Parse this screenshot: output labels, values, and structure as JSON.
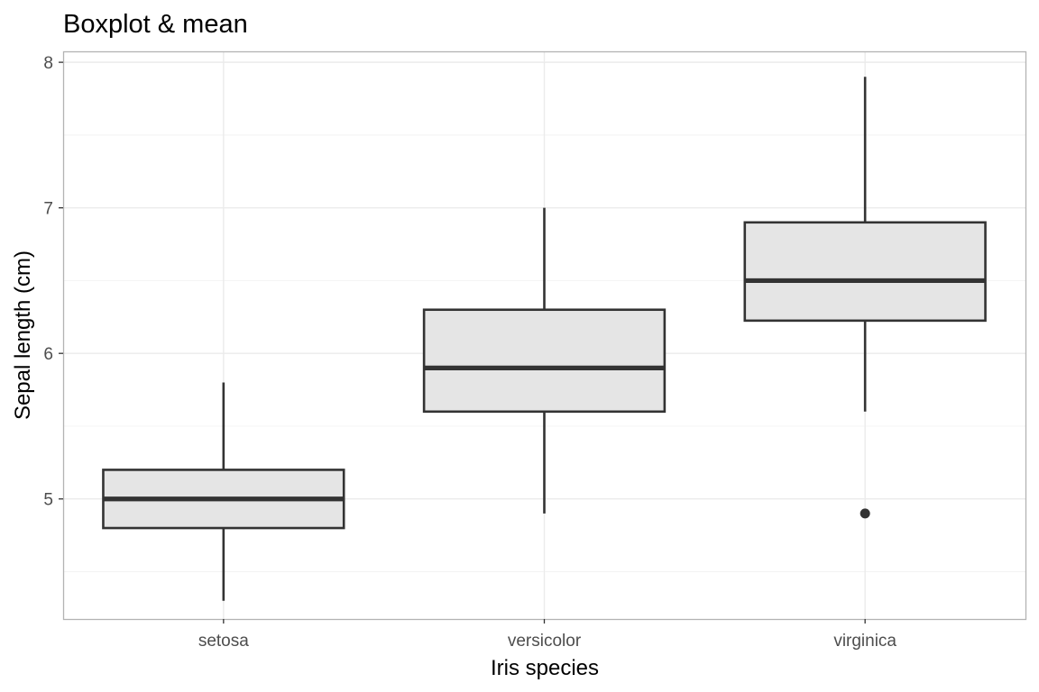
{
  "chart_data": {
    "type": "boxplot",
    "title": "Boxplot & mean",
    "xlabel": "Iris species",
    "ylabel": "Sepal length (cm)",
    "categories": [
      "setosa",
      "versicolor",
      "virginica"
    ],
    "boxes": [
      {
        "category": "setosa",
        "whisker_low": 4.3,
        "q1": 4.8,
        "median": 5.0,
        "q3": 5.2,
        "whisker_high": 5.8,
        "outliers": []
      },
      {
        "category": "versicolor",
        "whisker_low": 4.9,
        "q1": 5.6,
        "median": 5.9,
        "q3": 6.3,
        "whisker_high": 7.0,
        "outliers": []
      },
      {
        "category": "virginica",
        "whisker_low": 5.6,
        "q1": 6.225,
        "median": 6.5,
        "q3": 6.9,
        "whisker_high": 7.9,
        "outliers": [
          4.9
        ]
      }
    ],
    "ylim": [
      4.175,
      8.075
    ],
    "yticks": [
      5,
      6,
      7,
      8
    ],
    "grid": true,
    "colors": {
      "box_fill": "#e5e5e5",
      "box_line": "#333333",
      "grid": "#ebebeb",
      "panel_border": "#b3b3b3"
    }
  }
}
